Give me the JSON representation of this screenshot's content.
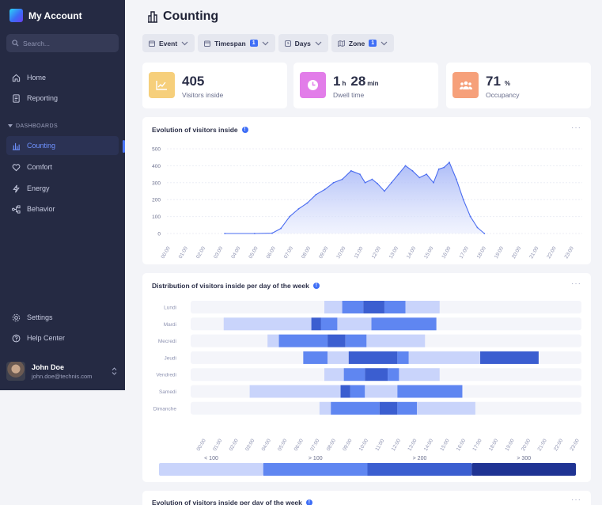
{
  "sidebar": {
    "brand": "My Account",
    "search_placeholder": "Search...",
    "nav": [
      {
        "label": "Home",
        "icon": "home-icon"
      },
      {
        "label": "Reporting",
        "icon": "document-icon"
      }
    ],
    "section_label": "DASHBOARDS",
    "dashboards": [
      {
        "label": "Counting",
        "icon": "bar-chart-icon",
        "active": true
      },
      {
        "label": "Comfort",
        "icon": "heart-icon"
      },
      {
        "label": "Energy",
        "icon": "lightning-icon"
      },
      {
        "label": "Behavior",
        "icon": "flow-icon"
      }
    ],
    "bottom": [
      {
        "label": "Settings",
        "icon": "gear-icon"
      },
      {
        "label": "Help Center",
        "icon": "help-icon"
      }
    ],
    "user": {
      "name": "John Doe",
      "email": "john.doe@technis.com"
    }
  },
  "page": {
    "title": "Counting"
  },
  "filters": [
    {
      "label": "Event",
      "badge": ""
    },
    {
      "label": "Timespan",
      "badge": "1"
    },
    {
      "label": "Days",
      "badge": ""
    },
    {
      "label": "Zone",
      "badge": "1"
    }
  ],
  "kpis": [
    {
      "value": "405",
      "label": "Visitors inside",
      "color": "#f6cf7b",
      "icon": "trend-icon"
    },
    {
      "value_h": "1",
      "unit_h": "h",
      "value_m": "28",
      "unit_m": "min",
      "label": "Dwell time",
      "color": "#e27de9",
      "icon": "clock-icon"
    },
    {
      "value": "71",
      "unit": "%",
      "label": "Occupancy",
      "color": "#f6a07a",
      "icon": "people-icon"
    }
  ],
  "chart_data": [
    {
      "type": "area",
      "title": "Evolution of visitors inside",
      "ylim": [
        0,
        500
      ],
      "yticks": [
        0,
        100,
        200,
        300,
        400,
        500
      ],
      "x_ticks": [
        "00:00",
        "01:00",
        "02:00",
        "03:00",
        "04:00",
        "05:00",
        "06:00",
        "07:00",
        "08:00",
        "09:00",
        "10:00",
        "11:00",
        "12:00",
        "13:00",
        "14:00",
        "15:00",
        "16:00",
        "17:00",
        "18:00",
        "19:00",
        "20:00",
        "21:00",
        "22:00",
        "23:00"
      ],
      "x_hours": [
        3.3,
        5.0,
        6.0,
        6.5,
        7.0,
        7.5,
        8.0,
        8.5,
        9.0,
        9.5,
        10.0,
        10.5,
        11.0,
        11.3,
        11.7,
        12.0,
        12.4,
        12.8,
        13.2,
        13.6,
        14.0,
        14.4,
        14.8,
        15.2,
        15.5,
        15.8,
        16.1,
        16.5,
        16.9,
        17.3,
        17.7,
        18.1
      ],
      "y": [
        0,
        0,
        2,
        30,
        100,
        145,
        180,
        230,
        260,
        300,
        320,
        370,
        350,
        300,
        320,
        295,
        250,
        300,
        350,
        400,
        370,
        330,
        350,
        300,
        380,
        390,
        420,
        320,
        200,
        100,
        35,
        0
      ],
      "color": "#4a6cf0"
    },
    {
      "type": "heatmap",
      "title": "Distribution of visitors inside per day of the week",
      "rows": [
        "Lundi",
        "Mardi",
        "Mecredi",
        "Jeudi",
        "Vendredi",
        "Samedi",
        "Dimanche"
      ],
      "x_ticks": [
        "00:00",
        "01:00",
        "02:00",
        "03:00",
        "04:00",
        "05:00",
        "06:00",
        "07:00",
        "08:00",
        "09:00",
        "10:00",
        "11:00",
        "12:00",
        "13:00",
        "14:00",
        "15:00",
        "16:00",
        "17:00",
        "18:00",
        "19:00",
        "20:00",
        "21:00",
        "22:00",
        "23:00"
      ],
      "bands": [
        [
          [
            7.7,
            8.8,
            1
          ],
          [
            8.8,
            10.1,
            2
          ],
          [
            10.1,
            11.4,
            3
          ],
          [
            11.4,
            12.7,
            2
          ],
          [
            12.7,
            14.8,
            1
          ]
        ],
        [
          [
            1.5,
            6.9,
            1
          ],
          [
            6.9,
            7.5,
            3
          ],
          [
            7.5,
            8.5,
            2
          ],
          [
            8.5,
            10.6,
            1
          ],
          [
            10.6,
            14.6,
            2
          ]
        ],
        [
          [
            4.2,
            4.9,
            1
          ],
          [
            4.9,
            7.9,
            2
          ],
          [
            7.9,
            9.0,
            3
          ],
          [
            9.0,
            10.3,
            2
          ],
          [
            10.3,
            13.9,
            1
          ]
        ],
        [
          [
            6.4,
            7.9,
            2
          ],
          [
            7.9,
            9.2,
            1
          ],
          [
            9.2,
            12.2,
            3
          ],
          [
            12.2,
            12.9,
            2
          ],
          [
            12.9,
            17.3,
            1
          ],
          [
            17.3,
            20.9,
            3
          ]
        ],
        [
          [
            7.7,
            8.9,
            1
          ],
          [
            8.9,
            10.2,
            2
          ],
          [
            10.2,
            11.6,
            3
          ],
          [
            11.6,
            12.3,
            2
          ],
          [
            12.3,
            14.8,
            1
          ]
        ],
        [
          [
            3.1,
            8.7,
            1
          ],
          [
            8.7,
            9.3,
            3
          ],
          [
            9.3,
            10.2,
            2
          ],
          [
            10.2,
            12.2,
            1
          ],
          [
            12.2,
            16.2,
            2
          ]
        ],
        [
          [
            7.4,
            8.1,
            1
          ],
          [
            8.1,
            11.1,
            2
          ],
          [
            11.1,
            12.2,
            3
          ],
          [
            12.2,
            13.4,
            2
          ],
          [
            13.4,
            17.0,
            1
          ]
        ]
      ],
      "palette": [
        "#f4f5fa",
        "#c9d4fb",
        "#5f86f1",
        "#3b5ed0",
        "#1f3393"
      ],
      "legend": [
        "< 100",
        "> 100",
        "> 200",
        "> 300"
      ]
    }
  ],
  "bottom_panel": {
    "title": "Evolution of visitors inside per day of the week"
  },
  "more_label": "···"
}
